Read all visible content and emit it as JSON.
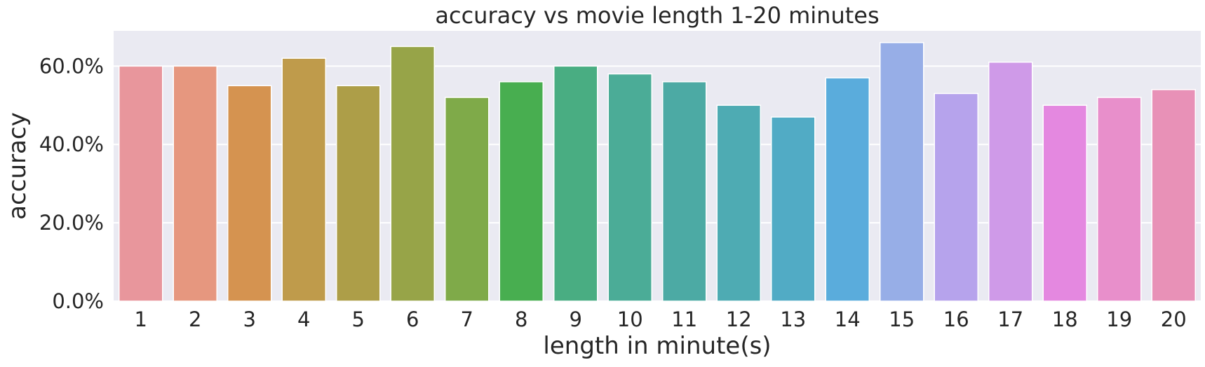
{
  "chart_data": {
    "type": "bar",
    "title": "accuracy vs movie length 1-20 minutes",
    "xlabel": "length in minute(s)",
    "ylabel": "accuracy",
    "categories": [
      "1",
      "2",
      "3",
      "4",
      "5",
      "6",
      "7",
      "8",
      "9",
      "10",
      "11",
      "12",
      "13",
      "14",
      "15",
      "16",
      "17",
      "18",
      "19",
      "20"
    ],
    "values": [
      0.6,
      0.6,
      0.55,
      0.62,
      0.55,
      0.65,
      0.52,
      0.56,
      0.6,
      0.58,
      0.56,
      0.5,
      0.47,
      0.57,
      0.66,
      0.53,
      0.61,
      0.5,
      0.52,
      0.54
    ],
    "ylim": [
      0,
      0.69
    ],
    "yticks": [
      0,
      0.2,
      0.4,
      0.6
    ],
    "ytick_labels": [
      "0.0%",
      "20.0%",
      "40.0%",
      "60.0%"
    ],
    "grid": true,
    "colors": [
      "#e8969c",
      "#e6977f",
      "#d59350",
      "#bf9b4b",
      "#ad9e48",
      "#97a448",
      "#7faa49",
      "#48ae50",
      "#49ad82",
      "#4bac97",
      "#4caaa4",
      "#4eabb3",
      "#51abc5",
      "#5aacdc",
      "#97aee7",
      "#b6a3ec",
      "#cf9ae8",
      "#e488e0",
      "#e88fcb",
      "#e891b7"
    ],
    "background": "#eaeaf2",
    "gridline_color": "#ffffff",
    "text_color": "#262626"
  }
}
